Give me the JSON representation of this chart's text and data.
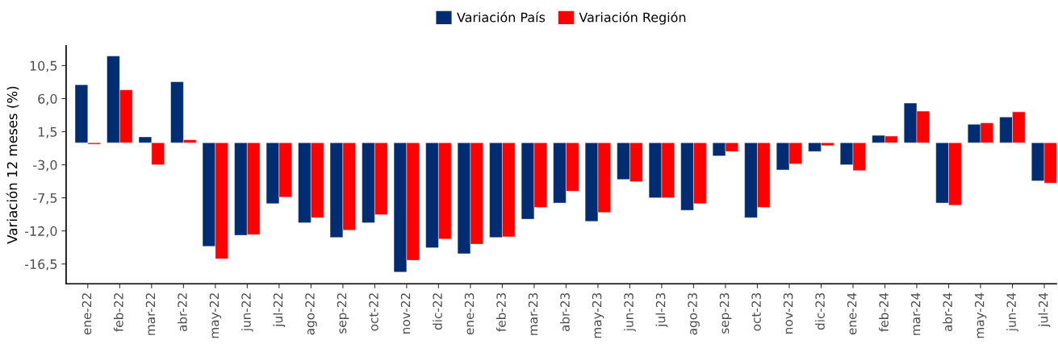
{
  "chart_data": {
    "type": "bar",
    "ylabel": "Variación 12 meses (%)",
    "categories": [
      "ene-22",
      "feb-22",
      "mar-22",
      "abr-22",
      "may-22",
      "jun-22",
      "jul-22",
      "ago-22",
      "sep-22",
      "oct-22",
      "nov-22",
      "dic-22",
      "ene-23",
      "feb-23",
      "mar-23",
      "abr-23",
      "may-23",
      "jun-23",
      "jul-23",
      "ago-23",
      "sep-23",
      "oct-23",
      "nov-23",
      "dic-23",
      "ene-24",
      "feb-24",
      "mar-24",
      "abr-24",
      "may-24",
      "jun-24",
      "jul-24"
    ],
    "series": [
      {
        "name": "Variación País",
        "color": "#002d72",
        "values": [
          7.9,
          11.8,
          0.8,
          8.3,
          -14.1,
          -12.6,
          -8.3,
          -10.9,
          -12.9,
          -10.9,
          -17.6,
          -14.3,
          -15.1,
          -12.9,
          -10.4,
          -8.2,
          -10.7,
          -5.0,
          -7.5,
          -9.2,
          -1.8,
          -10.2,
          -3.7,
          -1.2,
          -3.0,
          1.0,
          5.4,
          -8.2,
          2.5,
          3.5,
          -5.2
        ]
      },
      {
        "name": "Variación Región",
        "color": "#ff0000",
        "values": [
          -0.2,
          7.2,
          -3.0,
          0.4,
          -15.8,
          -12.5,
          -7.4,
          -10.2,
          -11.9,
          -9.8,
          -16.0,
          -13.1,
          -13.8,
          -12.8,
          -8.8,
          -6.6,
          -9.5,
          -5.3,
          -7.5,
          -8.3,
          -1.2,
          -8.8,
          -2.9,
          -0.4,
          -3.8,
          0.9,
          4.3,
          -8.5,
          2.7,
          4.2,
          -5.5
        ]
      }
    ],
    "ylim": [
      -19.2,
      13.2
    ],
    "yticks": [
      {
        "value": 10.5,
        "label": "10,5"
      },
      {
        "value": 6.0,
        "label": "6,0"
      },
      {
        "value": 1.5,
        "label": "1,5"
      },
      {
        "value": -3.0,
        "label": "-3,0"
      },
      {
        "value": -7.5,
        "label": "-7,5"
      },
      {
        "value": -12.0,
        "label": "-12,0"
      },
      {
        "value": -16.5,
        "label": "-16,5"
      }
    ],
    "grid": false,
    "legend": "top"
  }
}
